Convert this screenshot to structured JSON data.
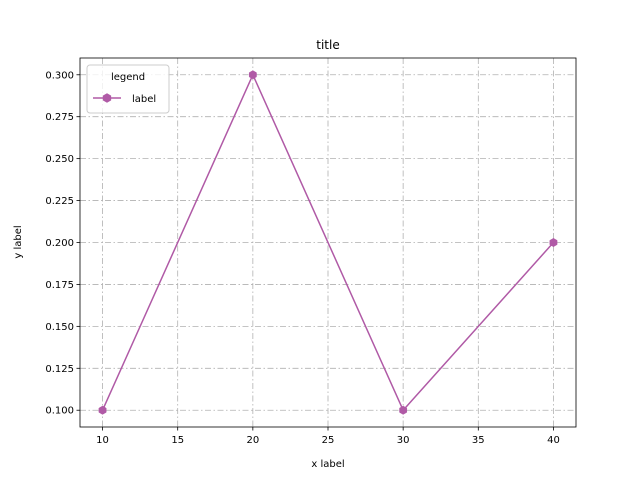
{
  "chart_data": {
    "type": "line",
    "title": "title",
    "xlabel": "x label",
    "ylabel": "y label",
    "x": [
      10,
      20,
      30,
      40
    ],
    "series": [
      {
        "name": "label",
        "values": [
          0.1,
          0.3,
          0.1,
          0.2
        ],
        "color": "#b05aa6",
        "marker": "hexagon"
      }
    ],
    "xlim": [
      8.5,
      41.5
    ],
    "ylim": [
      0.09,
      0.31
    ],
    "xticks": [
      10,
      15,
      20,
      25,
      30,
      35,
      40
    ],
    "xtick_labels": [
      "10",
      "15",
      "20",
      "25",
      "30",
      "35",
      "40"
    ],
    "yticks": [
      0.1,
      0.125,
      0.15,
      0.175,
      0.2,
      0.225,
      0.25,
      0.275,
      0.3
    ],
    "ytick_labels": [
      "0.100",
      "0.125",
      "0.150",
      "0.175",
      "0.200",
      "0.225",
      "0.250",
      "0.275",
      "0.300"
    ],
    "grid": true,
    "grid_style": "dashdot",
    "legend": {
      "title": "legend",
      "placement": "top-left"
    }
  }
}
